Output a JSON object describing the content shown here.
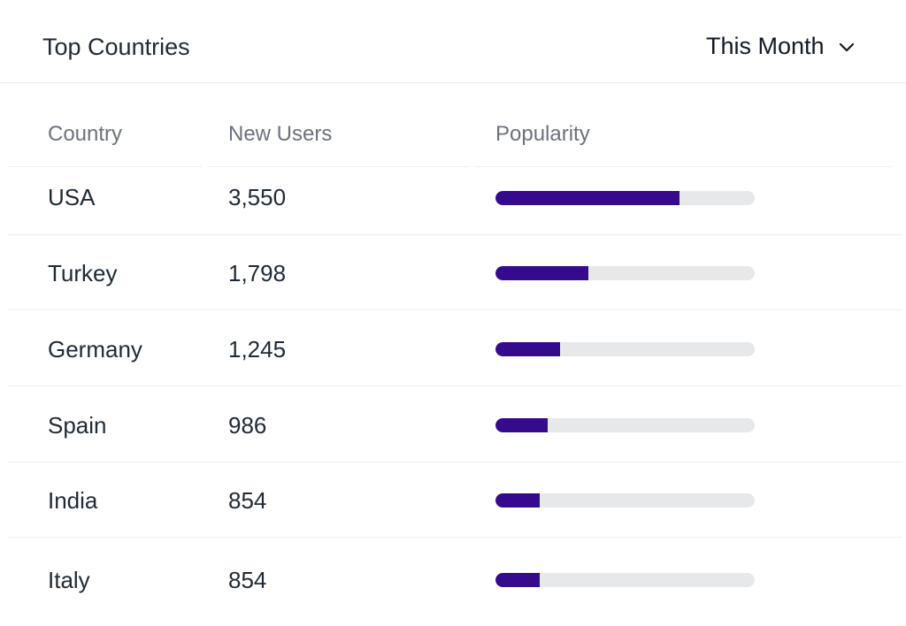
{
  "widget": {
    "title": "Top Countries",
    "period": {
      "selected": "This Month",
      "icon": "chevron-down-icon"
    }
  },
  "table": {
    "columns": [
      "Country",
      "New Users",
      "Popularity"
    ],
    "rows": [
      {
        "country": "USA",
        "new_users": "3,550",
        "popularity": 0.71
      },
      {
        "country": "Turkey",
        "new_users": "1,798",
        "popularity": 0.36
      },
      {
        "country": "Germany",
        "new_users": "1,245",
        "popularity": 0.25
      },
      {
        "country": "Spain",
        "new_users": "986",
        "popularity": 0.2
      },
      {
        "country": "India",
        "new_users": "854",
        "popularity": 0.17
      },
      {
        "country": "Italy",
        "new_users": "854",
        "popularity": 0.17
      }
    ]
  },
  "colors": {
    "bar_fill": "#350a8d",
    "bar_track": "#e7e8ea",
    "header_text": "#6b7280",
    "body_text": "#1f2937",
    "divider": "#eceef1"
  }
}
